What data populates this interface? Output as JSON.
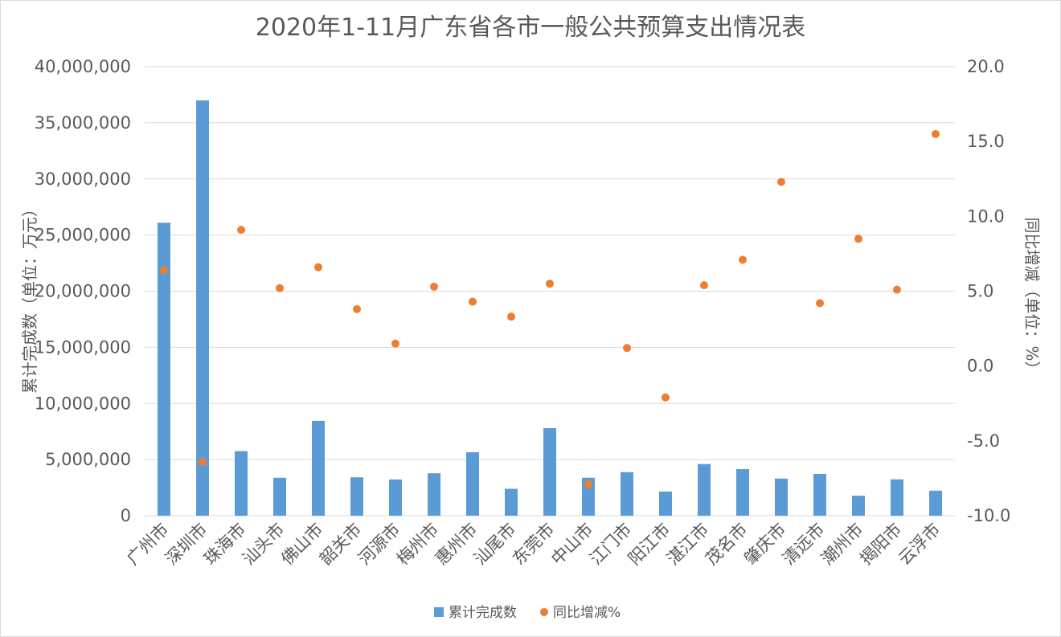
{
  "chart_data": {
    "type": "bar",
    "title": "2020年1-11月广东省各市一般公共预算支出情况表",
    "ylabel": "累计完成数（单位：万元）",
    "y2label": "同比增减（单位：%）",
    "ylim": [
      0,
      40000000
    ],
    "y2lim": [
      -10,
      20
    ],
    "yticks": [
      "0",
      "5,000,000",
      "10,000,000",
      "15,000,000",
      "20,000,000",
      "25,000,000",
      "30,000,000",
      "35,000,000",
      "40,000,000"
    ],
    "y2ticks": [
      "-10.0",
      "-5.0",
      "0.0",
      "5.0",
      "10.0",
      "15.0",
      "20.0"
    ],
    "grid": true,
    "legend_position": "bottom",
    "categories": [
      "广州市",
      "深圳市",
      "珠海市",
      "汕头市",
      "佛山市",
      "韶关市",
      "河源市",
      "梅州市",
      "惠州市",
      "汕尾市",
      "东莞市",
      "中山市",
      "江门市",
      "阳江市",
      "湛江市",
      "茂名市",
      "肇庆市",
      "清远市",
      "潮州市",
      "揭阳市",
      "云浮市"
    ],
    "series": [
      {
        "name": "累计完成数",
        "type": "bar",
        "axis": "left",
        "color": "#5b9bd5",
        "values": [
          26100000,
          37000000,
          5750000,
          3380000,
          8450000,
          3420000,
          3230000,
          3780000,
          5650000,
          2400000,
          7800000,
          3380000,
          3880000,
          2150000,
          4600000,
          4150000,
          3310000,
          3720000,
          1780000,
          3240000,
          2230000
        ]
      },
      {
        "name": "同比增减%",
        "type": "scatter",
        "axis": "right",
        "color": "#ed7d31",
        "values": [
          6.4,
          -6.4,
          9.1,
          5.2,
          6.6,
          3.8,
          1.5,
          5.3,
          4.3,
          3.3,
          5.5,
          -7.9,
          1.2,
          -2.1,
          5.4,
          7.1,
          12.3,
          4.2,
          8.5,
          5.1,
          15.5
        ]
      }
    ]
  }
}
